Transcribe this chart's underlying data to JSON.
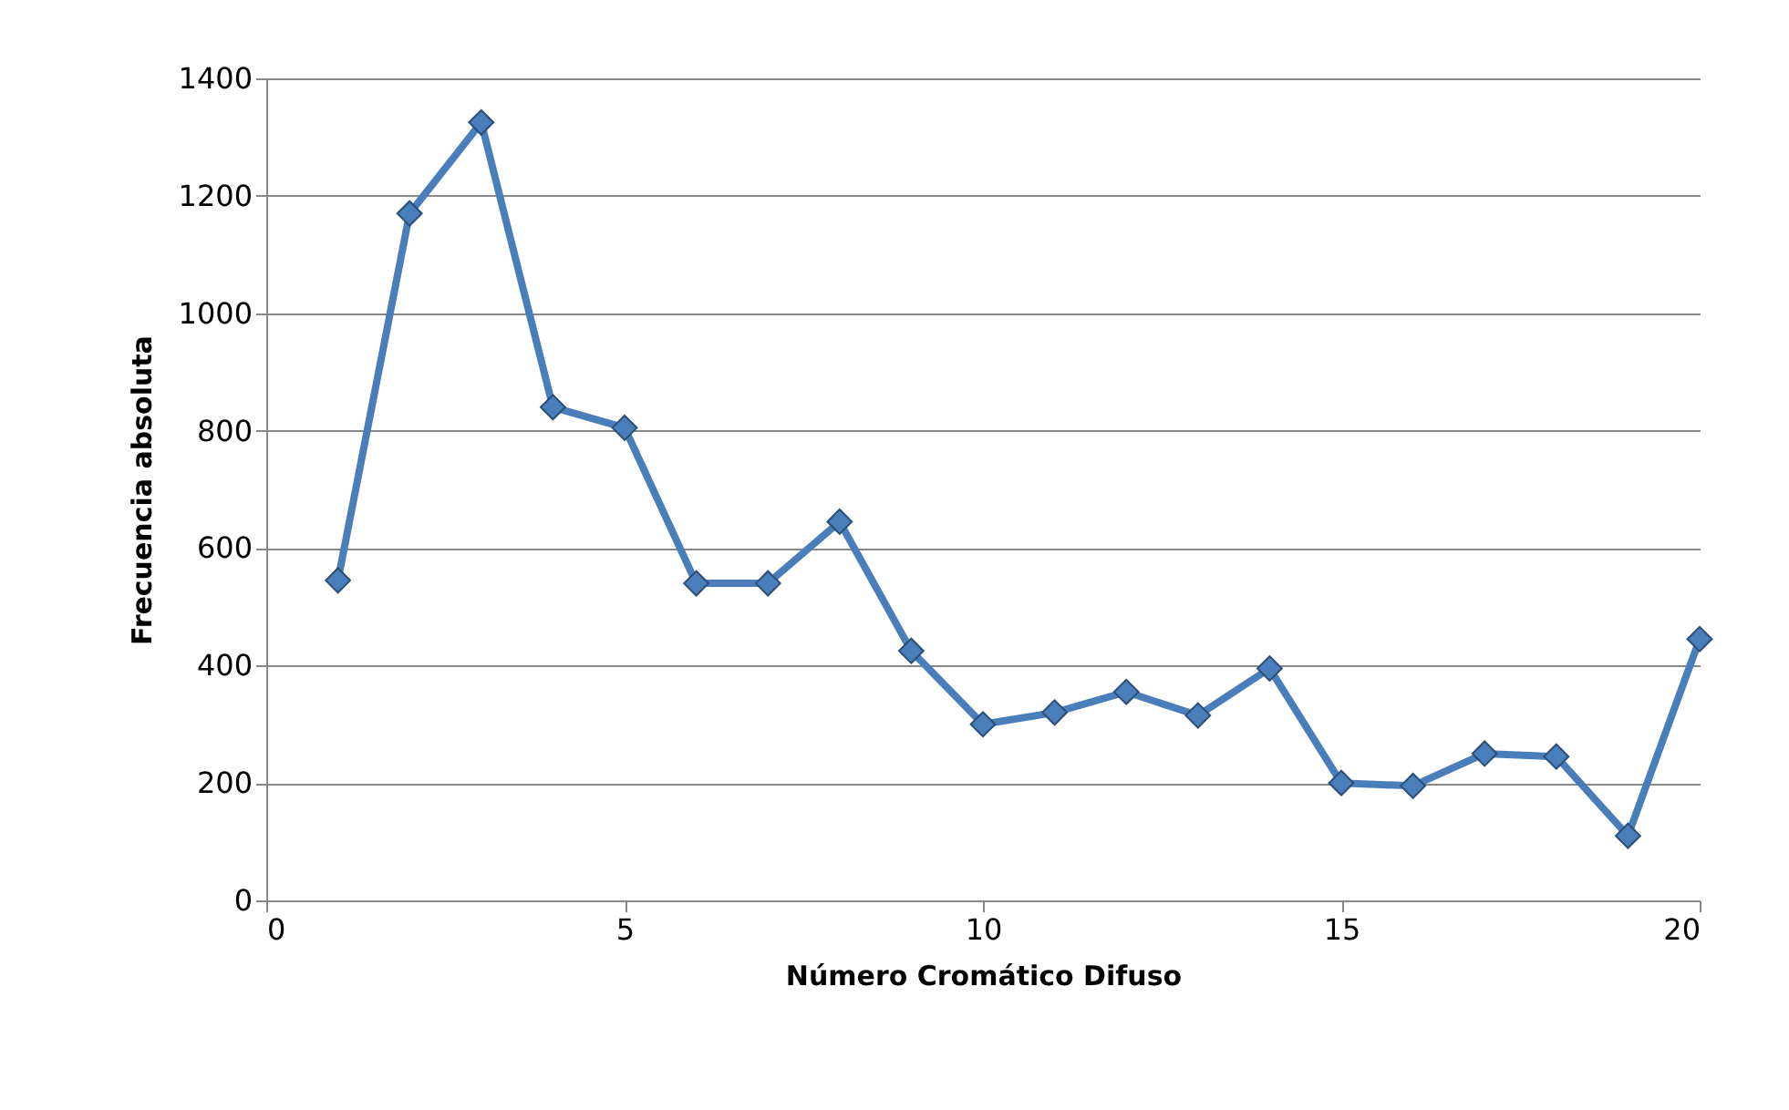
{
  "chart_data": {
    "type": "line",
    "xlabel": "Número Cromático Difuso",
    "ylabel": "Frecuencia absoluta",
    "x": [
      1,
      2,
      3,
      4,
      5,
      6,
      7,
      8,
      9,
      10,
      11,
      12,
      13,
      14,
      15,
      16,
      17,
      18,
      19,
      20
    ],
    "series": [
      {
        "color": "#4a7ebb",
        "values": [
          545,
          1170,
          1325,
          840,
          805,
          540,
          540,
          645,
          425,
          300,
          320,
          355,
          315,
          395,
          200,
          195,
          250,
          245,
          110,
          445
        ]
      }
    ],
    "xlim": [
      0,
      20
    ],
    "xticks": [
      0,
      5,
      10,
      15,
      20
    ],
    "ylim": [
      0,
      1400
    ],
    "yticks": [
      0,
      200,
      400,
      600,
      800,
      1000,
      1200,
      1400
    ],
    "grid": "y",
    "marker": "diamond",
    "line_style": "solid"
  }
}
